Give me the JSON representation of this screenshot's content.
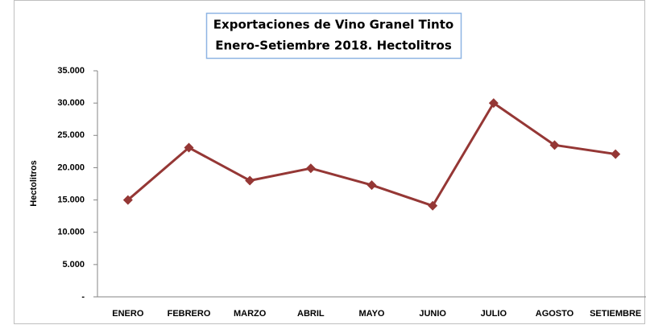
{
  "chart_data": {
    "type": "line",
    "title": "Exportaciones de Vino Granel Tinto",
    "subtitle": "Enero-Setiembre 2018. Hectolitros",
    "y_label": "Hectolitros",
    "categories": [
      "ENERO",
      "FEBRERO",
      "MARZO",
      "ABRIL",
      "MAYO",
      "JUNIO",
      "JULIO",
      "AGOSTO",
      "SETIEMBRE"
    ],
    "values": [
      15000,
      23100,
      18000,
      19900,
      17300,
      14100,
      30000,
      23500,
      22100
    ],
    "color": "#953735",
    "ylim": [
      0,
      35000
    ],
    "yticks": [
      {
        "value": 0,
        "label": "-"
      },
      {
        "value": 5000,
        "label": "5.000"
      },
      {
        "value": 10000,
        "label": "10.000"
      },
      {
        "value": 15000,
        "label": "15.000"
      },
      {
        "value": 20000,
        "label": "20.000"
      },
      {
        "value": 25000,
        "label": "25.000"
      },
      {
        "value": 30000,
        "label": "30.000"
      },
      {
        "value": 35000,
        "label": "35.000"
      }
    ],
    "grid": false
  }
}
